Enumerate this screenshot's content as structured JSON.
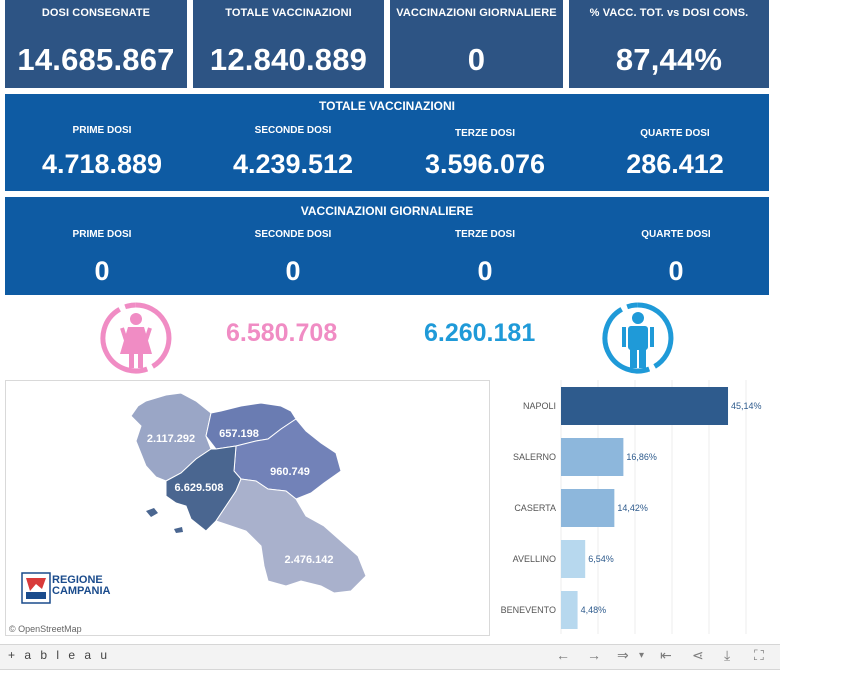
{
  "kpis": [
    {
      "label": "DOSI  CONSEGNATE",
      "value": "14.685.867"
    },
    {
      "label": "TOTALE VACCINAZIONI",
      "value": "12.840.889"
    },
    {
      "label": "VACCINAZIONI GIORNALIERE",
      "value": "0"
    },
    {
      "label": "% VACC. TOT. vs DOSI CONS.",
      "value": "87,44%"
    }
  ],
  "totale": {
    "title": "TOTALE VACCINAZIONI",
    "items": [
      {
        "label": "PRIME DOSI",
        "value": "4.718.889"
      },
      {
        "label": "SECONDE DOSI",
        "value": "4.239.512"
      },
      {
        "label": "TERZE DOSI",
        "value": "3.596.076"
      },
      {
        "label": "QUARTE DOSI",
        "value": "286.412"
      }
    ]
  },
  "giornaliere": {
    "title": "VACCINAZIONI GIORNALIERE",
    "items": [
      {
        "label": "PRIME DOSI",
        "value": "0"
      },
      {
        "label": "SECONDE DOSI",
        "value": "0"
      },
      {
        "label": "TERZE DOSI",
        "value": "0"
      },
      {
        "label": "QUARTE DOSI",
        "value": "0"
      }
    ]
  },
  "gender": {
    "female_value": "6.580.708",
    "male_value": "6.260.181",
    "female_color": "#f08cc4",
    "male_color": "#1f9ad8",
    "female_icon": "female-icon",
    "male_icon": "male-icon"
  },
  "map": {
    "provinces": [
      {
        "name": "Caserta",
        "value": "2.117.292",
        "color": "#9aa6c6"
      },
      {
        "name": "Benevento",
        "value": "657.198",
        "color": "#6a7cb2"
      },
      {
        "name": "Avellino",
        "value": "960.749",
        "color": "#7282b8"
      },
      {
        "name": "Napoli",
        "value": "6.629.508",
        "color": "#4a6690"
      },
      {
        "name": "Salerno",
        "value": "2.476.142",
        "color": "#a9b1cc"
      }
    ],
    "logo_line1": "REGIONE",
    "logo_line2": "CAMPANIA",
    "attribution": "© OpenStreetMap"
  },
  "chart_data": {
    "type": "bar",
    "orientation": "horizontal",
    "categories": [
      "NAPOLI",
      "SALERNO",
      "CASERTA",
      "AVELLINO",
      "BENEVENTO"
    ],
    "values": [
      45.14,
      16.86,
      14.42,
      6.54,
      4.48
    ],
    "labels": [
      "45,14%",
      "16,86%",
      "14,42%",
      "6,54%",
      "4,48%"
    ],
    "colors": [
      "#2e5b8d",
      "#8db7dc",
      "#8db7dc",
      "#b7d8ee",
      "#b7d8ee"
    ],
    "xlim": [
      0,
      50
    ],
    "grid": true
  },
  "toolbar": {
    "logo": "+ a b l e a u",
    "icons": [
      "undo-icon",
      "redo-icon",
      "revert-icon",
      "pause-icon",
      "share-icon",
      "download-icon",
      "fullscreen-icon"
    ]
  }
}
